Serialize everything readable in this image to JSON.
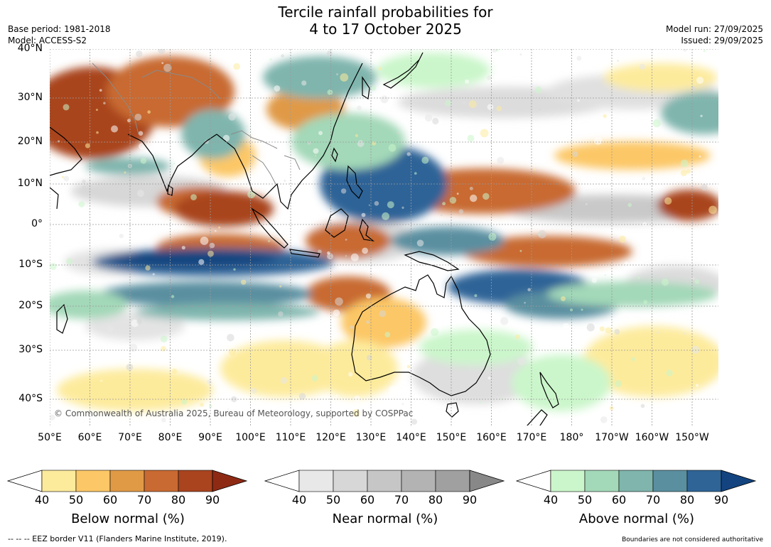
{
  "title": {
    "line1": "Tercile rainfall probabilities for",
    "line2": "4 to 17 October 2025"
  },
  "meta_left": {
    "base_period": "Base period: 1981-2018",
    "model": "Model: ACCESS-S2"
  },
  "meta_right": {
    "model_run": "Model run: 27/09/2025",
    "issued": "Issued: 29/09/2025"
  },
  "map": {
    "copyright": "© Commonwealth of Australia 2025, Bureau of Meteorology, supported by COSPPac",
    "lat_labels": [
      "40°N",
      "30°N",
      "20°N",
      "10°N",
      "0°",
      "10°S",
      "20°S",
      "30°S",
      "40°S"
    ],
    "lon_labels": [
      "50°E",
      "60°E",
      "70°E",
      "80°E",
      "90°E",
      "100°E",
      "110°E",
      "120°E",
      "130°E",
      "140°E",
      "150°E",
      "160°E",
      "170°E",
      "180°",
      "170°W",
      "160°W",
      "150°W"
    ]
  },
  "colorbars": [
    {
      "title": "Below normal (%)",
      "ticks": [
        "40",
        "50",
        "60",
        "70",
        "80",
        "90"
      ],
      "colors": [
        "#ffffff",
        "#fdeb9c",
        "#fcc766",
        "#e09a46",
        "#c86a32",
        "#a9441f",
        "#8e2a14"
      ]
    },
    {
      "title": "Near normal (%)",
      "ticks": [
        "40",
        "50",
        "60",
        "70",
        "80",
        "90"
      ],
      "colors": [
        "#ffffff",
        "#e8e8e8",
        "#d7d7d7",
        "#c6c6c6",
        "#b3b3b3",
        "#a0a0a0",
        "#888888"
      ]
    },
    {
      "title": "Above normal (%)",
      "ticks": [
        "40",
        "50",
        "60",
        "70",
        "80",
        "90"
      ],
      "colors": [
        "#ffffff",
        "#cbf6cb",
        "#a3d8b8",
        "#7fb5ad",
        "#5a8fa0",
        "#2f6497",
        "#13447f"
      ]
    }
  ],
  "footer": {
    "left": "--  --  -- EEZ border V11 (Flanders Marine Institute, 2019).",
    "right": "Boundaries are not considered authoritative"
  },
  "palette": {
    "ocean_base": "#ffffff",
    "coastline": "#000000",
    "country_border": "#8a8a8a",
    "grid": "#9a9a9a"
  }
}
